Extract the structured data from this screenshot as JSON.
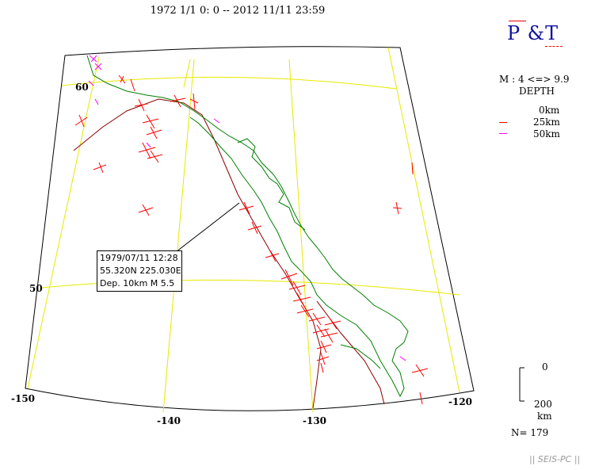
{
  "header": {
    "title": "1972 1/1 0: 0 -- 2012 11/11 23:59",
    "pt_label": "P  &T"
  },
  "legend": {
    "magnitude": "M : 4 <=> 9.9",
    "depth_title": "DEPTH",
    "depth_items": [
      {
        "label": "0km",
        "color": "#ff0000"
      },
      {
        "label": "25km",
        "color": "#ff0000"
      },
      {
        "label": "50km",
        "color": "#ff00ff"
      }
    ],
    "depth_scale_top": "0",
    "depth_scale_bottom": "200",
    "depth_scale_unit": "km",
    "count": "N= 179"
  },
  "map": {
    "latitude_labels": [
      "60",
      "50"
    ],
    "longitude_labels": [
      "-150",
      "-140",
      "-130",
      "-120"
    ],
    "colors": {
      "graticule": "#e8e800",
      "coastline": "#008000",
      "plate_boundary": "#8b0000",
      "mechanism_shallow": "#ff0000",
      "mechanism_deep": "#ff00ff"
    }
  },
  "event_annotation": {
    "date": "1979/07/11 12:28",
    "location": "55.320N  225.030E",
    "details": "Dep. 10km    M 5.5"
  },
  "footer": {
    "software": "|| SEIS-PC ||"
  }
}
